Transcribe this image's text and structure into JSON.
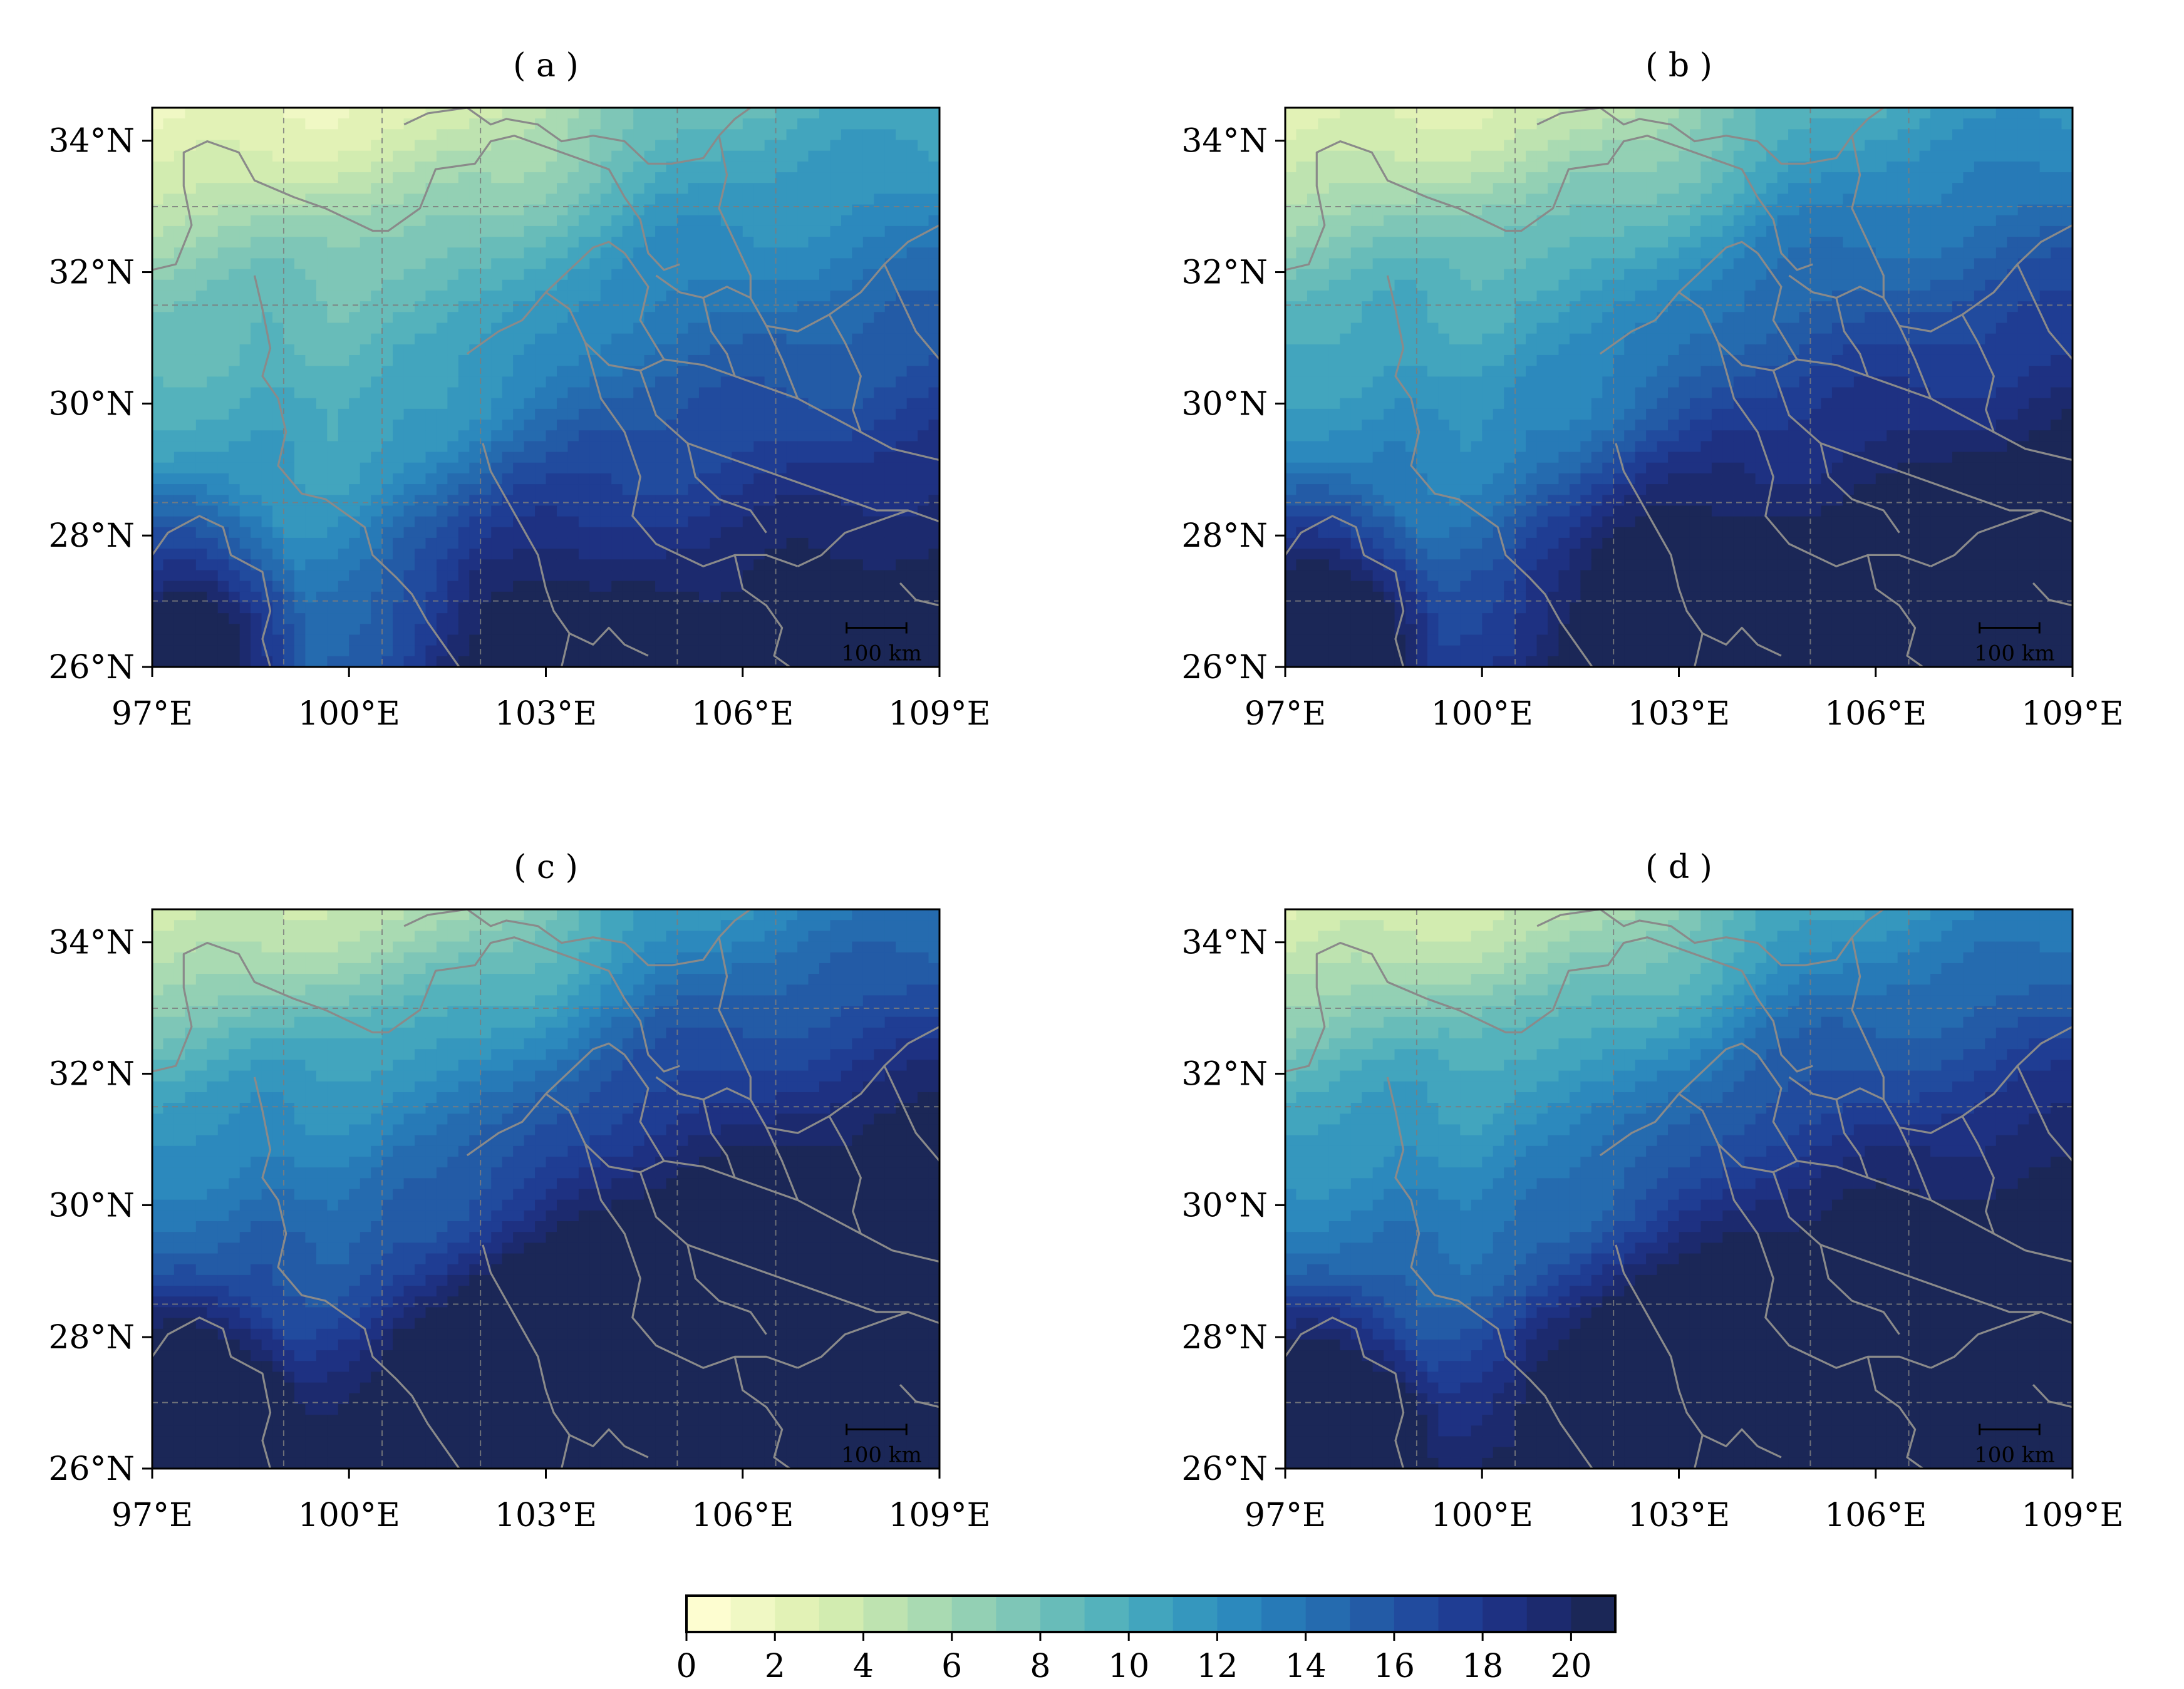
{
  "figure": {
    "panels": [
      {
        "id": "a",
        "title": "( a )",
        "intensity": 0.0
      },
      {
        "id": "b",
        "title": "( b )",
        "intensity": 0.22
      },
      {
        "id": "c",
        "title": "( c )",
        "intensity": 0.55
      },
      {
        "id": "d",
        "title": "( d )",
        "intensity": 0.42
      }
    ],
    "lon_ticks": [
      "97°E",
      "100°E",
      "103°E",
      "106°E",
      "109°E"
    ],
    "lat_ticks": [
      "26°N",
      "28°N",
      "30°N",
      "32°N",
      "34°N"
    ],
    "scale_bar_label": "100 km",
    "colorbar": {
      "ticks": [
        "0",
        "2",
        "4",
        "6",
        "8",
        "10",
        "12",
        "14",
        "16",
        "18",
        "20"
      ],
      "levels": [
        0,
        1,
        2,
        3,
        4,
        5,
        6,
        7,
        8,
        9,
        10,
        11,
        12,
        13,
        14,
        15,
        16,
        17,
        18,
        19,
        20,
        21
      ],
      "colors": [
        "#fdfdd0",
        "#f0f8c4",
        "#e2f2b6",
        "#d2ecb0",
        "#bee3b0",
        "#a9dab2",
        "#93d0b4",
        "#7ec6b7",
        "#68bcb9",
        "#54b2bc",
        "#42a5be",
        "#3597be",
        "#2c89bd",
        "#277ab7",
        "#256baf",
        "#235ba6",
        "#214b9e",
        "#1f3d93",
        "#1e3182",
        "#1c2a6e",
        "#1b2757"
      ]
    }
  },
  "chart_data": {
    "type": "heatmap",
    "description_units": "contour-filled field, levels 0-21",
    "extent": {
      "lon": [
        97,
        109
      ],
      "lat": [
        26,
        34.5
      ]
    },
    "panels": [
      "( a )",
      "( b )",
      "( c )",
      "( d )"
    ],
    "colorbar_range": [
      0,
      21
    ],
    "colorbar_ticks": [
      0,
      2,
      4,
      6,
      8,
      10,
      12,
      14,
      16,
      18,
      20
    ],
    "grid": true
  }
}
